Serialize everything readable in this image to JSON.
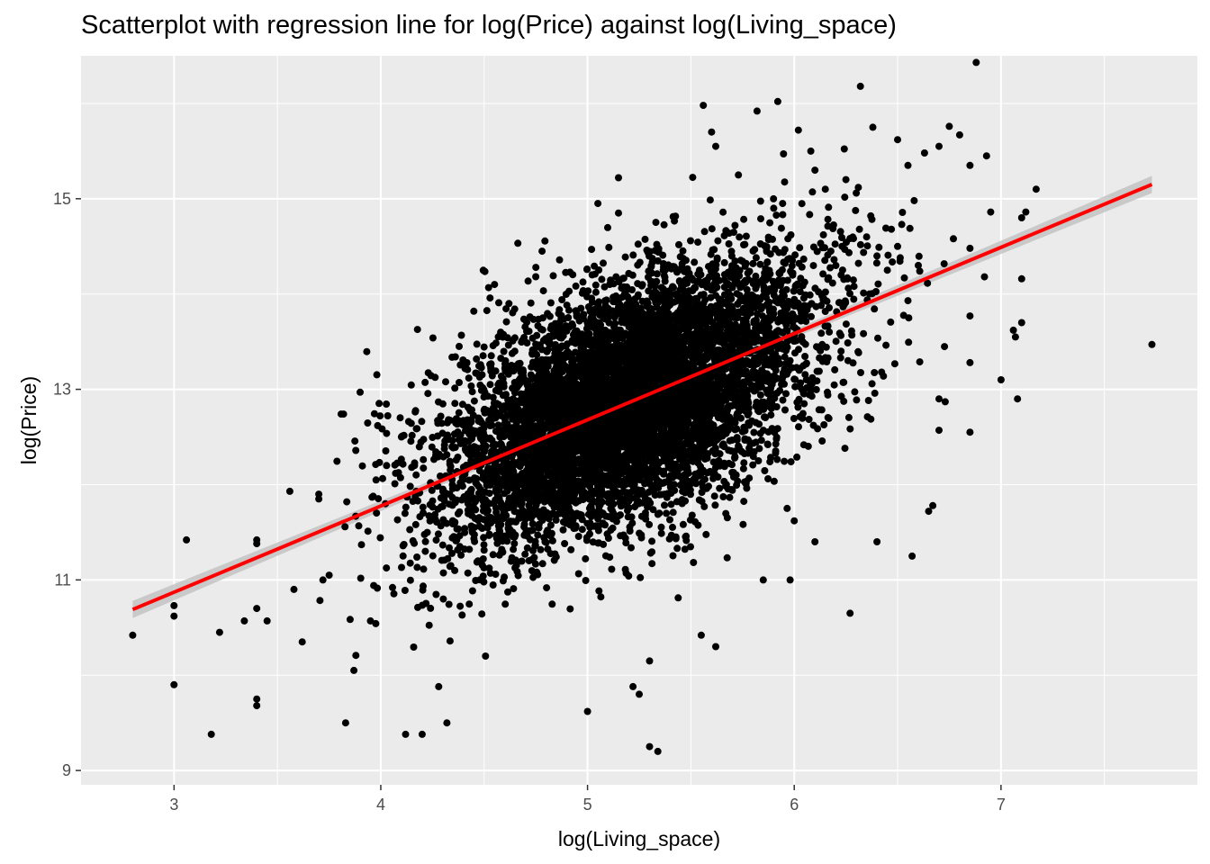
{
  "chart_data": {
    "type": "scatter",
    "title": "Scatterplot with regression line for log(Price) against log(Living_space)",
    "xlabel": "log(Living_space)",
    "ylabel": "log(Price)",
    "xlim": [
      2.55,
      7.95
    ],
    "ylim": [
      8.85,
      16.5
    ],
    "x_ticks": [
      "3",
      "4",
      "5",
      "6",
      "7"
    ],
    "y_ticks": [
      "9",
      "11",
      "13",
      "15"
    ],
    "x_tick_values": [
      3,
      4,
      5,
      6,
      7
    ],
    "y_tick_values": [
      9,
      11,
      13,
      15
    ],
    "grid": true,
    "legend": "none",
    "colors": {
      "panel_background": "#ebebeb",
      "gridline": "#ffffff",
      "points": "#000000",
      "regression_line": "#ff0000",
      "confidence_band": "#bdbdbd"
    },
    "regression_line": {
      "x": [
        2.8,
        7.73
      ],
      "y": [
        10.69,
        15.15
      ]
    },
    "cloud": {
      "center_x": 5.2,
      "center_y": 12.9,
      "sd_x": 0.45,
      "sd_y": 0.62,
      "n_points": 7000
    },
    "points": [
      [
        2.8,
        10.42
      ],
      [
        3.0,
        9.9
      ],
      [
        3.0,
        10.73
      ],
      [
        3.0,
        10.62
      ],
      [
        3.06,
        11.42
      ],
      [
        3.18,
        9.38
      ],
      [
        3.22,
        10.45
      ],
      [
        3.34,
        10.57
      ],
      [
        3.4,
        11.42
      ],
      [
        3.4,
        11.38
      ],
      [
        3.4,
        9.75
      ],
      [
        3.4,
        9.68
      ],
      [
        3.4,
        10.7
      ],
      [
        3.45,
        10.57
      ],
      [
        3.56,
        11.93
      ],
      [
        3.58,
        10.9
      ],
      [
        3.62,
        10.35
      ],
      [
        3.7,
        11.9
      ],
      [
        3.7,
        11.85
      ],
      [
        3.82,
        12.74
      ],
      [
        3.83,
        9.5
      ],
      [
        3.87,
        10.05
      ],
      [
        3.9,
        12.97
      ],
      [
        4.1,
        12.5
      ],
      [
        4.12,
        9.38
      ],
      [
        4.2,
        9.38
      ],
      [
        4.28,
        9.88
      ],
      [
        4.32,
        9.5
      ],
      [
        4.45,
        13.82
      ],
      [
        4.58,
        13.6
      ],
      [
        5.0,
        9.62
      ],
      [
        5.3,
        9.25
      ],
      [
        5.34,
        9.2
      ],
      [
        5.22,
        9.88
      ],
      [
        5.25,
        9.8
      ],
      [
        5.3,
        10.15
      ],
      [
        5.55,
        10.42
      ],
      [
        5.62,
        10.3
      ],
      [
        5.6,
        15.7
      ],
      [
        5.62,
        15.55
      ],
      [
        5.56,
        15.98
      ],
      [
        5.82,
        15.92
      ],
      [
        5.92,
        16.02
      ],
      [
        5.73,
        15.25
      ],
      [
        6.02,
        15.72
      ],
      [
        6.08,
        15.5
      ],
      [
        6.1,
        15.3
      ],
      [
        6.15,
        15.1
      ],
      [
        6.25,
        15.2
      ],
      [
        6.3,
        15.06
      ],
      [
        6.32,
        16.18
      ],
      [
        6.38,
        15.75
      ],
      [
        6.5,
        15.62
      ],
      [
        6.55,
        15.35
      ],
      [
        6.58,
        14.98
      ],
      [
        6.63,
        15.48
      ],
      [
        6.7,
        15.55
      ],
      [
        6.75,
        15.76
      ],
      [
        6.8,
        15.67
      ],
      [
        6.85,
        15.35
      ],
      [
        6.88,
        16.43
      ],
      [
        6.93,
        15.45
      ],
      [
        6.95,
        14.86
      ],
      [
        6.77,
        14.58
      ],
      [
        6.85,
        14.48
      ],
      [
        6.92,
        14.18
      ],
      [
        7.1,
        14.8
      ],
      [
        7.12,
        14.86
      ],
      [
        7.17,
        15.1
      ],
      [
        7.1,
        14.16
      ],
      [
        6.85,
        13.77
      ],
      [
        7.06,
        13.62
      ],
      [
        7.1,
        13.7
      ],
      [
        7.07,
        13.55
      ],
      [
        6.85,
        13.28
      ],
      [
        7.0,
        13.1
      ],
      [
        7.08,
        12.9
      ],
      [
        6.7,
        12.9
      ],
      [
        6.85,
        12.55
      ],
      [
        6.7,
        12.57
      ],
      [
        6.73,
        12.87
      ],
      [
        6.67,
        11.78
      ],
      [
        6.65,
        11.72
      ],
      [
        6.57,
        11.25
      ],
      [
        6.4,
        11.4
      ],
      [
        6.27,
        10.65
      ],
      [
        6.1,
        11.4
      ],
      [
        6.0,
        11.62
      ],
      [
        5.98,
        11.0
      ],
      [
        5.85,
        11.0
      ],
      [
        7.73,
        13.47
      ],
      [
        6.55,
        13.93
      ],
      [
        6.6,
        14.3
      ],
      [
        6.45,
        14.25
      ],
      [
        6.5,
        14.5
      ],
      [
        6.47,
        14.68
      ],
      [
        6.52,
        14.73
      ],
      [
        6.4,
        14.4
      ],
      [
        6.35,
        14.6
      ],
      [
        6.37,
        14.82
      ],
      [
        5.15,
        15.22
      ],
      [
        5.15,
        14.85
      ],
      [
        5.05,
        14.95
      ],
      [
        4.78,
        14.45
      ],
      [
        4.75,
        14.28
      ],
      [
        4.55,
        14.1
      ],
      [
        4.62,
        13.9
      ],
      [
        3.72,
        11.0
      ],
      [
        3.75,
        11.05
      ],
      [
        3.95,
        10.57
      ]
    ]
  }
}
